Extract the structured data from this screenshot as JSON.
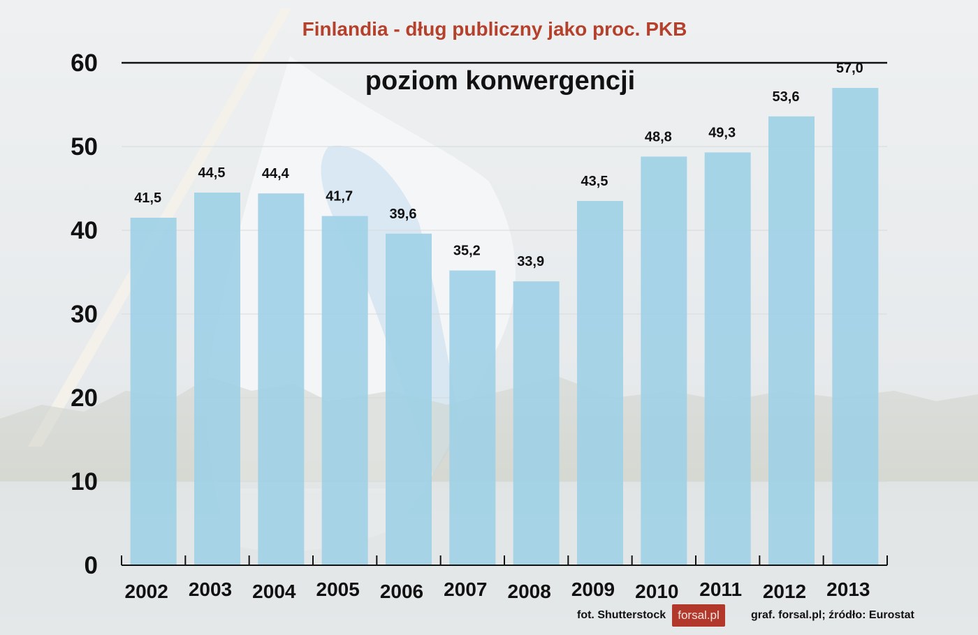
{
  "chart_data": {
    "type": "bar",
    "title": "Finlandia - dług publiczny jako proc. PKB",
    "annotation": "poziom konwergencji",
    "categories": [
      "2002",
      "2003",
      "2004",
      "2005",
      "2006",
      "2007",
      "2008",
      "2009",
      "2010",
      "2011",
      "2012",
      "2013"
    ],
    "values": [
      41.5,
      44.5,
      44.4,
      41.7,
      39.6,
      35.2,
      33.9,
      43.5,
      48.8,
      49.3,
      53.6,
      57.0
    ],
    "value_labels": [
      "41,5",
      "44,5",
      "44,4",
      "41,7",
      "39,6",
      "35,2",
      "33,9",
      "43,5",
      "48,8",
      "49,3",
      "53,6",
      "57,0"
    ],
    "yticks": [
      "0",
      "10",
      "20",
      "30",
      "40",
      "50",
      "60"
    ],
    "ylim": [
      0,
      60
    ],
    "reference_line": 60,
    "grid": true,
    "bar_color": "#9fd0e6"
  },
  "footer": {
    "photo_credit": "fot. Shutterstock",
    "logo_text": "forsal.pl",
    "source": "graf. forsal.pl;  źródło: Eurostat"
  }
}
